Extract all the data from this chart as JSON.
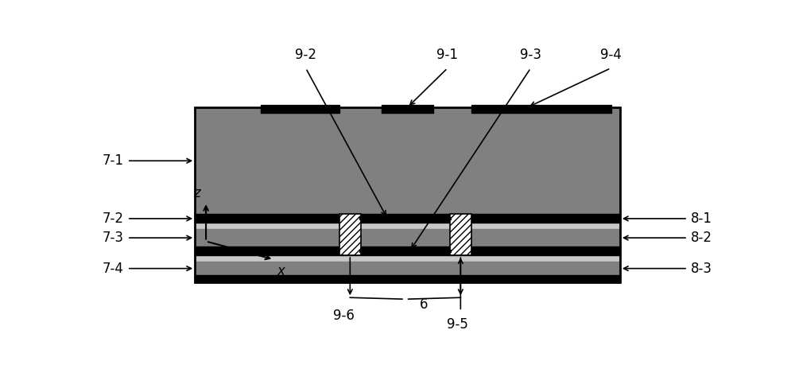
{
  "fig_width": 10.0,
  "fig_height": 4.93,
  "bg_color": "#ffffff",
  "dark_gray": "#808080",
  "mid_gray": "#909090",
  "light_gray": "#c8c8c8",
  "black": "#000000",
  "white": "#ffffff",
  "mx": 0.155,
  "my": 0.22,
  "mw": 0.69,
  "mh": 0.58
}
